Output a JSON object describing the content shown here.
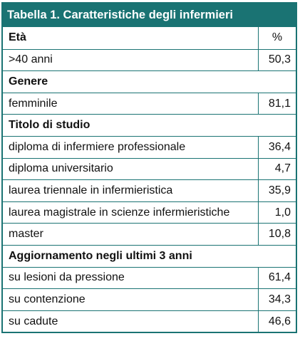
{
  "table": {
    "title": "Tabella 1. Caratteristiche degli infermieri",
    "header": {
      "label": "Età",
      "value": "%"
    },
    "rows": [
      {
        "type": "data",
        "label": ">40 anni",
        "value": "50,3"
      },
      {
        "type": "section",
        "label": "Genere"
      },
      {
        "type": "data",
        "label": "femminile",
        "value": "81,1"
      },
      {
        "type": "section",
        "label": "Titolo di studio"
      },
      {
        "type": "data",
        "label": "diploma di infermiere professionale",
        "value": "36,4"
      },
      {
        "type": "data",
        "label": "diploma universitario",
        "value": "4,7"
      },
      {
        "type": "data",
        "label": "laurea triennale in infermieristica",
        "value": "35,9"
      },
      {
        "type": "data",
        "label": "laurea magistrale in scienze infermieristiche",
        "value": "1,0"
      },
      {
        "type": "data",
        "label": "master",
        "value": "10,8"
      },
      {
        "type": "section",
        "label": "Aggiornamento negli ultimi 3 anni"
      },
      {
        "type": "data",
        "label": "su lesioni da pressione",
        "value": "61,4"
      },
      {
        "type": "data",
        "label": "su contenzione",
        "value": "34,3"
      },
      {
        "type": "data",
        "label": "su cadute",
        "value": "46,6"
      }
    ]
  },
  "colors": {
    "accent": "#1a7373",
    "title_text": "#ffffff"
  }
}
